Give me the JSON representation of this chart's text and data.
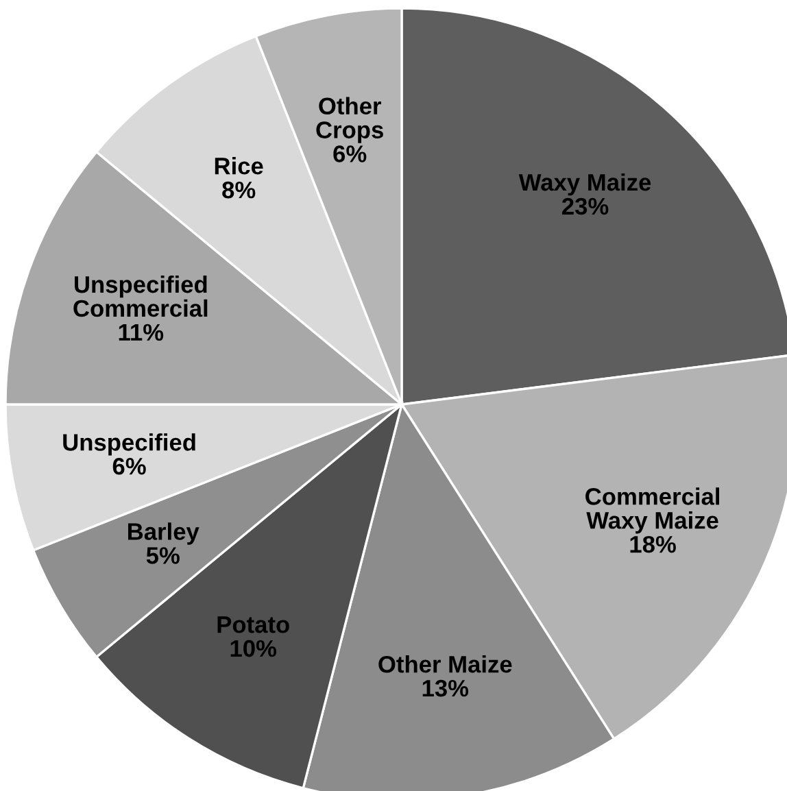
{
  "chart_data": {
    "type": "pie",
    "categories": [
      "Waxy Maize",
      "Commercial\nWaxy Maize",
      "Other Maize",
      "Potato",
      "Barley",
      "Unspecified",
      "Unspecified\nCommercial",
      "Rice",
      "Other\nCrops"
    ],
    "values": [
      23,
      18,
      13,
      10,
      5,
      6,
      11,
      8,
      6
    ],
    "value_labels": [
      "23%",
      "18%",
      "13%",
      "10%",
      "5%",
      "6%",
      "11%",
      "8%",
      "6%"
    ],
    "colors": [
      "#5e5e5e",
      "#b3b3b3",
      "#8c8c8c",
      "#505050",
      "#8f8f8f",
      "#dadada",
      "#a8a8a8",
      "#d9d9d9",
      "#b5b5b5"
    ]
  }
}
